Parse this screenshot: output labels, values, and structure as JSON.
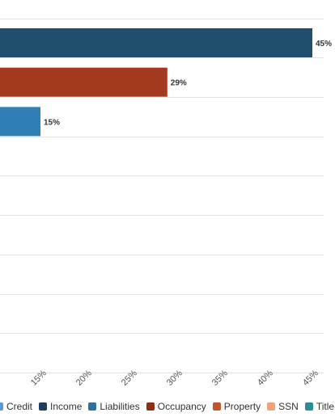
{
  "chart_data": {
    "type": "bar",
    "orientation": "horizontal",
    "title": "",
    "xlabel": "",
    "ylabel": "",
    "xlim": [
      10,
      45
    ],
    "x_ticks": [
      "15%",
      "20%",
      "25%",
      "30%",
      "35%",
      "40%",
      "45%"
    ],
    "x_tick_values": [
      15,
      20,
      25,
      30,
      35,
      40,
      45
    ],
    "grid": true,
    "legend_position": "bottom",
    "categories": [
      "Income",
      "Property",
      "Liabilities",
      "Credit",
      "Occupancy",
      "SSN",
      "Title",
      "",
      ""
    ],
    "values": [
      45,
      29,
      15,
      null,
      null,
      null,
      null,
      null,
      null
    ],
    "data_labels": [
      "45%",
      "29%",
      "15%",
      "",
      "",
      "",
      "",
      "",
      ""
    ],
    "bar_colors": [
      "#1f4e6e",
      "#a33a1f",
      "#2f7fb6",
      "",
      "",
      "",
      "",
      "",
      ""
    ],
    "legend": [
      {
        "name": "Credit",
        "color": "#5b9bd5"
      },
      {
        "name": "Income",
        "color": "#1d3f5c"
      },
      {
        "name": "Liabilities",
        "color": "#2f6f9f"
      },
      {
        "name": "Occupancy",
        "color": "#8b2f17"
      },
      {
        "name": "Property",
        "color": "#c0562b"
      },
      {
        "name": "SSN",
        "color": "#f2a27a"
      },
      {
        "name": "Title",
        "color": "#2e8b9a"
      }
    ]
  }
}
